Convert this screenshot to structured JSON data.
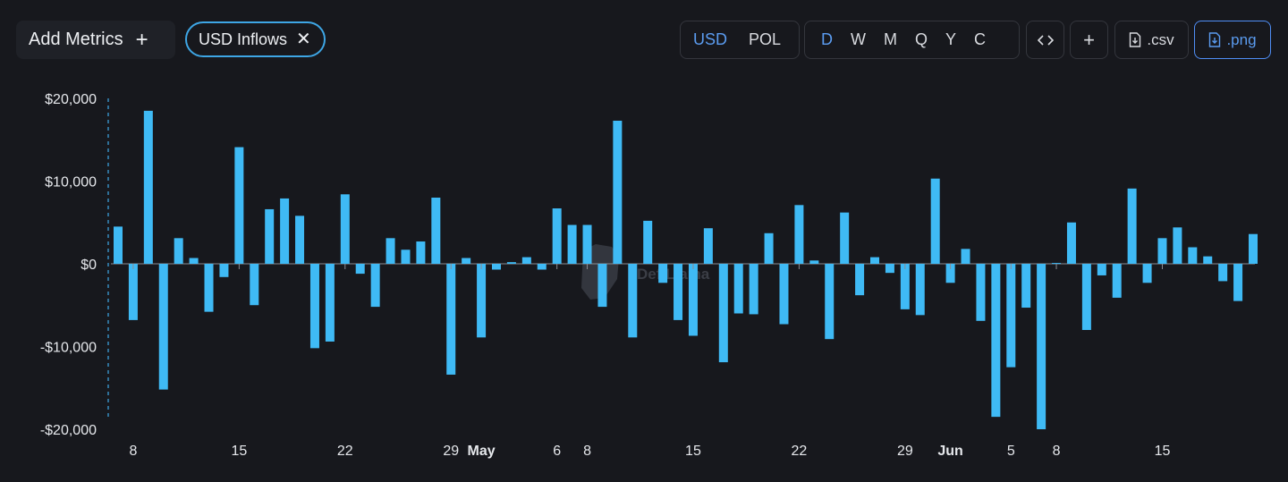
{
  "toolbar": {
    "add_metrics_label": "Add Metrics",
    "add_metrics_icon": "plus-icon",
    "metric_chip_label": "USD Inflows",
    "metric_chip_remove_icon": "close-icon",
    "currency_options": [
      "USD",
      "POL"
    ],
    "currency_selected": "USD",
    "period_options": [
      "D",
      "W",
      "M",
      "Q",
      "Y",
      "C"
    ],
    "period_selected": "D",
    "embed_icon": "code-icon",
    "plus_label": "+",
    "csv_label": ".csv",
    "png_label": ".png",
    "download_icon": "file-download-icon",
    "accent_color": "#4f8ef5"
  },
  "watermark": "DefiLlama",
  "chart_data": {
    "type": "bar",
    "title": "",
    "xlabel": "",
    "ylabel": "",
    "ylim": [
      -20000,
      20000
    ],
    "y_ticks": [
      "$20,000",
      "$10,000",
      "$0",
      "-$10,000",
      "-$20,000"
    ],
    "y_tick_values": [
      20000,
      10000,
      0,
      -10000,
      -20000
    ],
    "grid": false,
    "bar_color": "#3fbaf5",
    "x_start": "2024-04-07",
    "x_tick_labels": [
      {
        "label": "8",
        "date": "2024-04-08",
        "bold": false
      },
      {
        "label": "15",
        "date": "2024-04-15",
        "bold": false
      },
      {
        "label": "22",
        "date": "2024-04-22",
        "bold": false
      },
      {
        "label": "29",
        "date": "2024-04-29",
        "bold": false
      },
      {
        "label": "May",
        "date": "2024-05-01",
        "bold": true
      },
      {
        "label": "6",
        "date": "2024-05-06",
        "bold": false
      },
      {
        "label": "8",
        "date": "2024-05-08",
        "bold": false
      },
      {
        "label": "15",
        "date": "2024-05-15",
        "bold": false
      },
      {
        "label": "22",
        "date": "2024-05-22",
        "bold": false
      },
      {
        "label": "29",
        "date": "2024-05-29",
        "bold": false
      },
      {
        "label": "Jun",
        "date": "2024-06-01",
        "bold": true
      },
      {
        "label": "5",
        "date": "2024-06-05",
        "bold": false
      },
      {
        "label": "8",
        "date": "2024-06-08",
        "bold": false
      },
      {
        "label": "15",
        "date": "2024-06-15",
        "bold": false
      }
    ],
    "series": [
      {
        "name": "USD Inflows",
        "values": [
          4500,
          -6800,
          18500,
          -15200,
          3100,
          700,
          -5800,
          -1600,
          14100,
          -5000,
          6600,
          7900,
          5800,
          -10200,
          -9400,
          8400,
          -1200,
          -5200,
          3100,
          1700,
          2700,
          8000,
          -13400,
          700,
          -8900,
          -700,
          200,
          800,
          -700,
          6700,
          4700,
          4700,
          -5200,
          17300,
          -8900,
          5200,
          -2300,
          -6800,
          -8700,
          4300,
          -11900,
          -6000,
          -6100,
          3700,
          -7300,
          7100,
          400,
          -9100,
          6200,
          -3800,
          800,
          -1100,
          -5500,
          -6200,
          10300,
          -2300,
          1800,
          -6900,
          -18500,
          -12500,
          -5300,
          -20000,
          100,
          5000,
          -8000,
          -1400,
          -4100,
          9100,
          -2300,
          3100,
          4400,
          2000,
          900,
          -2100,
          -4500,
          3600
        ]
      }
    ]
  }
}
